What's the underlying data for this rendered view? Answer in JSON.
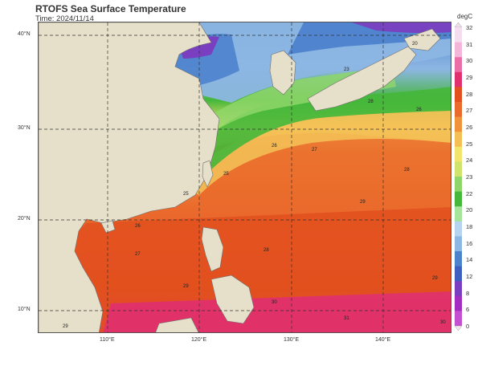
{
  "header": {
    "title": "RTOFS Sea Surface Temperature",
    "time": "Time: 2024/11/14"
  },
  "axes": {
    "lat_labels": [
      "40°N",
      "30°N",
      "20°N",
      "10°N"
    ],
    "lon_labels": [
      "110°E",
      "120°E",
      "130°E",
      "140°E"
    ]
  },
  "colorbar": {
    "unit": "degC",
    "ticks": [
      "32",
      "31",
      "30",
      "29",
      "28",
      "27",
      "26",
      "25",
      "24",
      "23",
      "22",
      "20",
      "18",
      "16",
      "14",
      "12",
      "8",
      "6",
      "0"
    ],
    "colors": [
      "#f3ddee",
      "#f4b6d8",
      "#ec6ea6",
      "#e03070",
      "#e2501f",
      "#ea6a2c",
      "#f19139",
      "#f4bf55",
      "#f2e46c",
      "#cfe36d",
      "#8ed66a",
      "#45b73a",
      "#a5e49b",
      "#b6d4ef",
      "#8cb6e3",
      "#4d82cd",
      "#3d5fbf",
      "#7a3fc0",
      "#a22fc2",
      "#c44fd0"
    ]
  },
  "map_colors": {
    "land": "#e6dfc9",
    "coast": "#6f6f6f",
    "grid": "#333333"
  },
  "contour_labels": [
    "29",
    "28",
    "27",
    "29",
    "25",
    "26",
    "20",
    "23",
    "26",
    "28",
    "29",
    "30",
    "28",
    "27",
    "26",
    "25",
    "29",
    "31",
    "30"
  ]
}
